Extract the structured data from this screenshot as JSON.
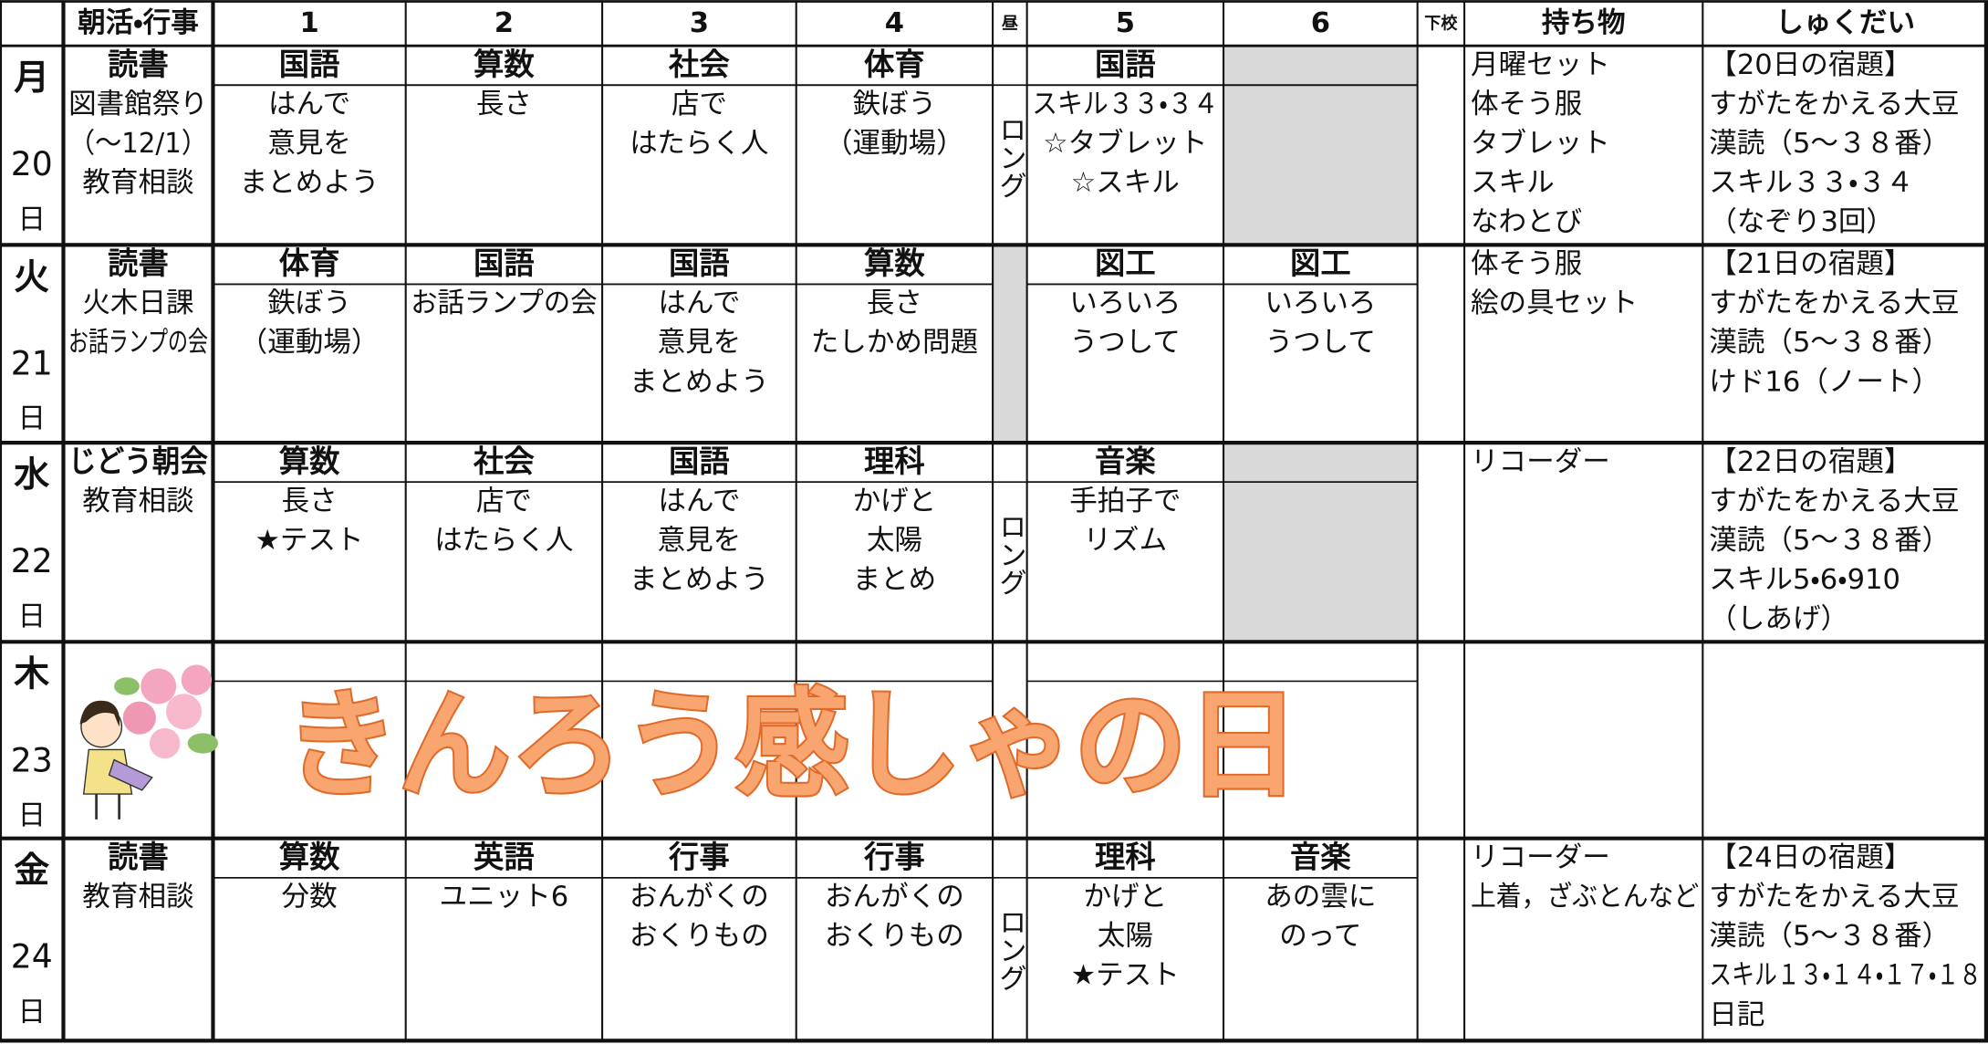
{
  "header": {
    "columns": [
      "朝活・行事",
      "1",
      "2",
      "3",
      "4",
      "昼",
      "5",
      "6",
      "下校",
      "持ち物",
      "しゅくだい"
    ]
  },
  "days": [
    {
      "day": "月",
      "date": "20",
      "unit": "日",
      "morning": [
        "読書",
        "図書館祭り",
        "（～12/1）",
        "教育相談"
      ],
      "periods": [
        {
          "subject": "国語",
          "lines": [
            "はんで",
            "意見を",
            "まとめよう"
          ]
        },
        {
          "subject": "算数",
          "lines": [
            "長さ"
          ]
        },
        {
          "subject": "社会",
          "lines": [
            "店で",
            "はたらく人"
          ]
        },
        {
          "subject": "体育",
          "lines": [
            "鉄ぼう",
            "（運動場）"
          ]
        },
        {
          "subject": "国語",
          "lines": [
            "スキル３３・３４",
            "☆タブレット",
            "☆スキル"
          ]
        },
        null
      ],
      "lunch": "ロング",
      "items": [
        "月曜セット",
        "体そう服",
        "タブレット",
        "スキル",
        "なわとび"
      ],
      "homework": [
        "【20日の宿題】",
        "すがたをかえる大豆",
        "漢読（5～３８番）",
        "スキル３３・３４",
        "（なぞり3回）"
      ]
    },
    {
      "day": "火",
      "date": "21",
      "unit": "日",
      "morning": [
        "読書",
        "火木日課",
        "お話ランプの会"
      ],
      "periods": [
        {
          "subject": "体育",
          "lines": [
            "鉄ぼう",
            "（運動場）"
          ]
        },
        {
          "subject": "国語",
          "lines": [
            "お話ランプの会"
          ]
        },
        {
          "subject": "国語",
          "lines": [
            "はんで",
            "意見を",
            "まとめよう"
          ]
        },
        {
          "subject": "算数",
          "lines": [
            "長さ",
            "たしかめ問題"
          ]
        },
        {
          "subject": "図工",
          "lines": [
            "いろいろ",
            "うつして"
          ]
        },
        {
          "subject": "図工",
          "lines": [
            "いろいろ",
            "うつして"
          ]
        }
      ],
      "lunch": null,
      "items": [
        "体そう服",
        "絵の具セット"
      ],
      "homework": [
        "【21日の宿題】",
        "すがたをかえる大豆",
        "漢読（5～３８番）",
        "けド16（ノート）"
      ]
    },
    {
      "day": "水",
      "date": "22",
      "unit": "日",
      "morning": [
        "じどう朝会",
        "教育相談"
      ],
      "periods": [
        {
          "subject": "算数",
          "lines": [
            "長さ",
            "★テスト"
          ]
        },
        {
          "subject": "社会",
          "lines": [
            "店で",
            "はたらく人"
          ]
        },
        {
          "subject": "国語",
          "lines": [
            "はんで",
            "意見を",
            "まとめよう"
          ]
        },
        {
          "subject": "理科",
          "lines": [
            "かげと",
            "太陽",
            "まとめ"
          ]
        },
        {
          "subject": "音楽",
          "lines": [
            "手拍子で",
            "リズム"
          ]
        },
        null
      ],
      "lunch": "ロング",
      "items": [
        "リコーダー"
      ],
      "homework": [
        "【22日の宿題】",
        "すがたをかえる大豆",
        "漢読（5～３８番）",
        "スキル5・6・910",
        "（しあげ）"
      ]
    },
    {
      "day": "木",
      "date": "23",
      "unit": "日",
      "banner": "きんろう感しゃの日"
    },
    {
      "day": "金",
      "date": "24",
      "unit": "日",
      "morning": [
        "読書",
        "教育相談"
      ],
      "periods": [
        {
          "subject": "算数",
          "lines": [
            "分数"
          ]
        },
        {
          "subject": "英語",
          "lines": [
            "ユニット6"
          ]
        },
        {
          "subject": "行事",
          "lines": [
            "おんがくの",
            "おくりもの"
          ]
        },
        {
          "subject": "行事",
          "lines": [
            "おんがくの",
            "おくりもの"
          ]
        },
        {
          "subject": "理科",
          "lines": [
            "かげと",
            "太陽",
            "★テスト"
          ]
        },
        {
          "subject": "音楽",
          "lines": [
            "あの雲に",
            "のって"
          ]
        }
      ],
      "lunch": "ロング",
      "items": [
        "リコーダー",
        "上着，ざぶとんなど"
      ],
      "homework": [
        "【24日の宿題】",
        "すがたをかえる大豆",
        "漢読（5～３８番）",
        "スキル１３・１４・１７・１８",
        "日記"
      ]
    }
  ]
}
